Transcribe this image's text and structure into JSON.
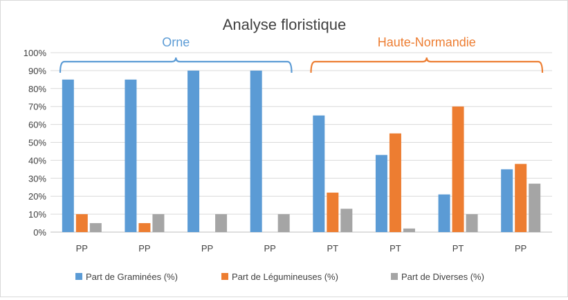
{
  "chart_data": {
    "type": "bar",
    "title": "Analyse floristique",
    "categories": [
      "PP",
      "PP",
      "PP",
      "PP",
      "PT",
      "PT",
      "PT",
      "PP"
    ],
    "series": [
      {
        "name": "Part de Graminées (%)",
        "color": "#5b9bd5",
        "values": [
          85,
          85,
          90,
          90,
          65,
          43,
          21,
          35
        ]
      },
      {
        "name": "Part de Légumineuses (%)",
        "color": "#ed7d31",
        "values": [
          10,
          5,
          0,
          0,
          22,
          55,
          70,
          38
        ]
      },
      {
        "name": "Part de Diverses (%)",
        "color": "#a5a5a5",
        "values": [
          5,
          10,
          10,
          10,
          13,
          2,
          10,
          27
        ]
      }
    ],
    "ylim": [
      0,
      100
    ],
    "yticks": [
      "0%",
      "10%",
      "20%",
      "30%",
      "40%",
      "50%",
      "60%",
      "70%",
      "80%",
      "90%",
      "100%"
    ],
    "grid": true,
    "legend": "bottom",
    "groups": [
      {
        "label": "Orne",
        "color": "#5b9bd5",
        "from": 0,
        "to": 3
      },
      {
        "label": "Haute-Normandie",
        "color": "#ed7d31",
        "from": 4,
        "to": 7
      }
    ]
  }
}
